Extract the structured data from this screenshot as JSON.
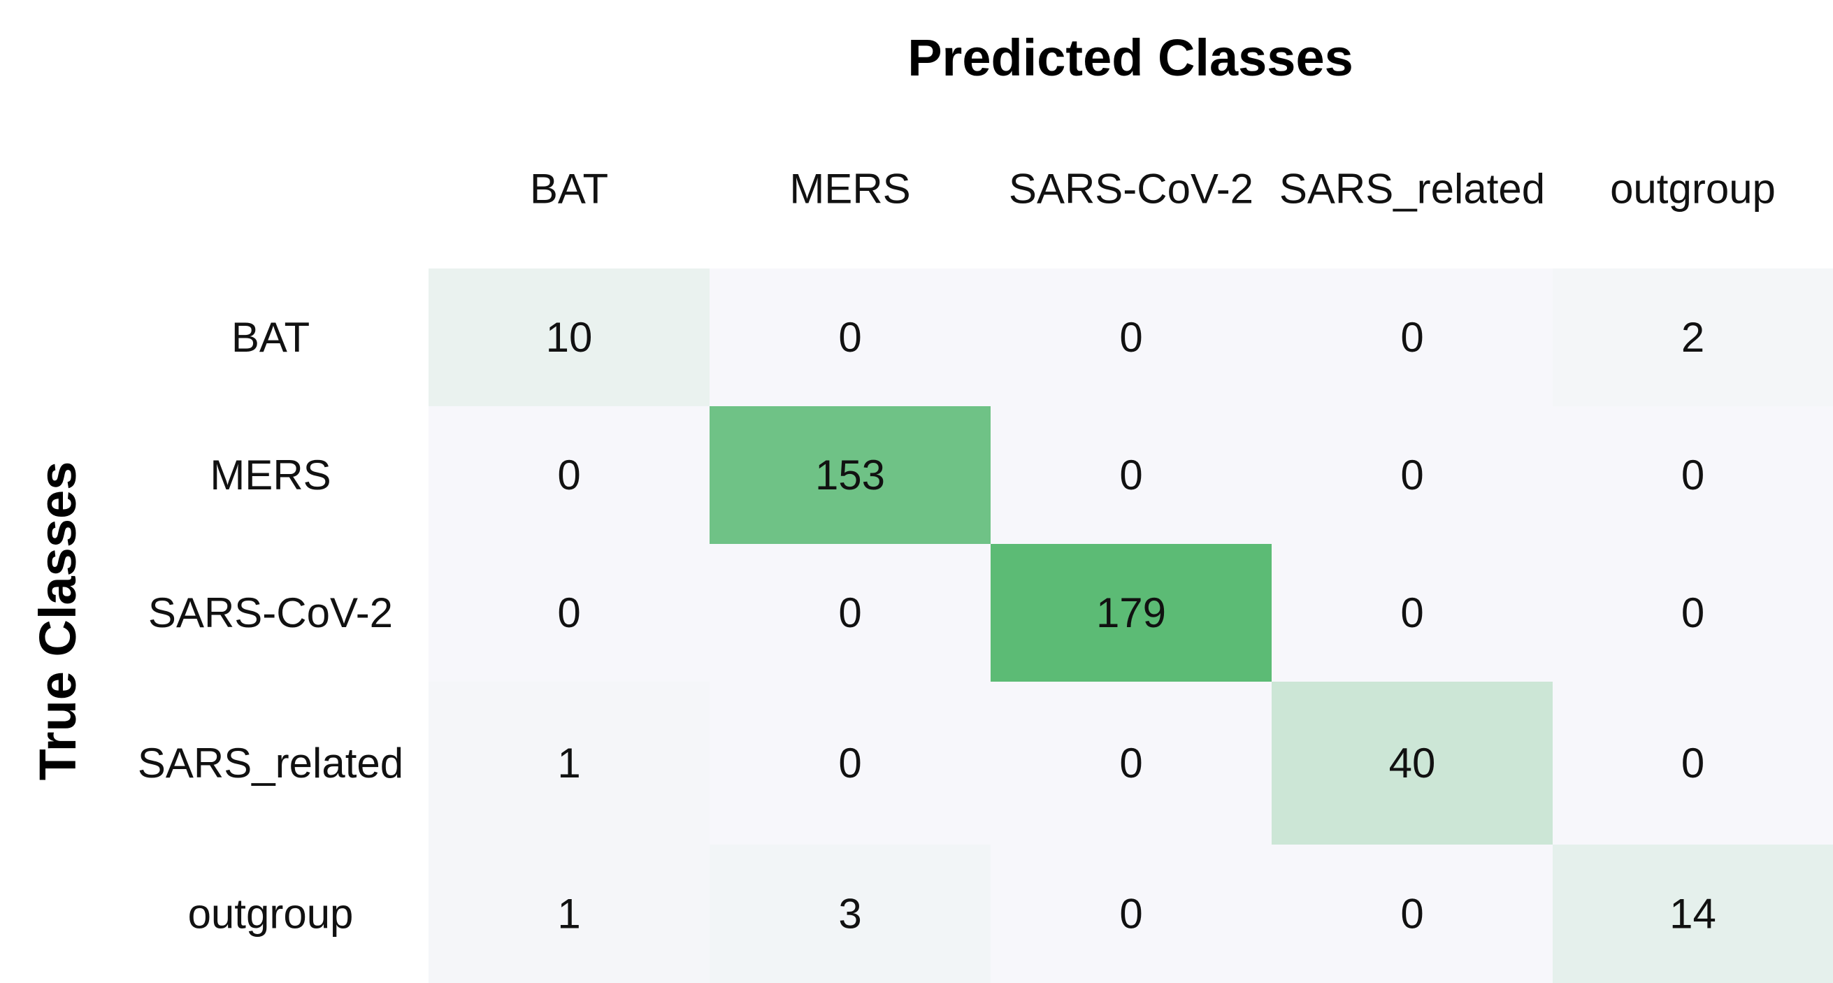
{
  "chart_data": {
    "type": "heatmap",
    "title": "",
    "xlabel": "Predicted Classes",
    "ylabel": "True Classes",
    "x_categories": [
      "BAT",
      "MERS",
      "SARS-CoV-2",
      "SARS_related",
      "outgroup"
    ],
    "y_categories": [
      "BAT",
      "MERS",
      "SARS-CoV-2",
      "SARS_related",
      "outgroup"
    ],
    "values": [
      [
        10,
        0,
        0,
        0,
        2
      ],
      [
        0,
        153,
        0,
        0,
        0
      ],
      [
        0,
        0,
        179,
        0,
        0
      ],
      [
        1,
        0,
        0,
        40,
        0
      ],
      [
        1,
        3,
        0,
        0,
        14
      ]
    ],
    "x_axis_position": "top",
    "colormap": {
      "low": "#f7f7fb",
      "high": "#5cbb75",
      "vmin": 0,
      "vmax": 179
    },
    "show_values": true,
    "grid": false,
    "colorbar": false
  }
}
